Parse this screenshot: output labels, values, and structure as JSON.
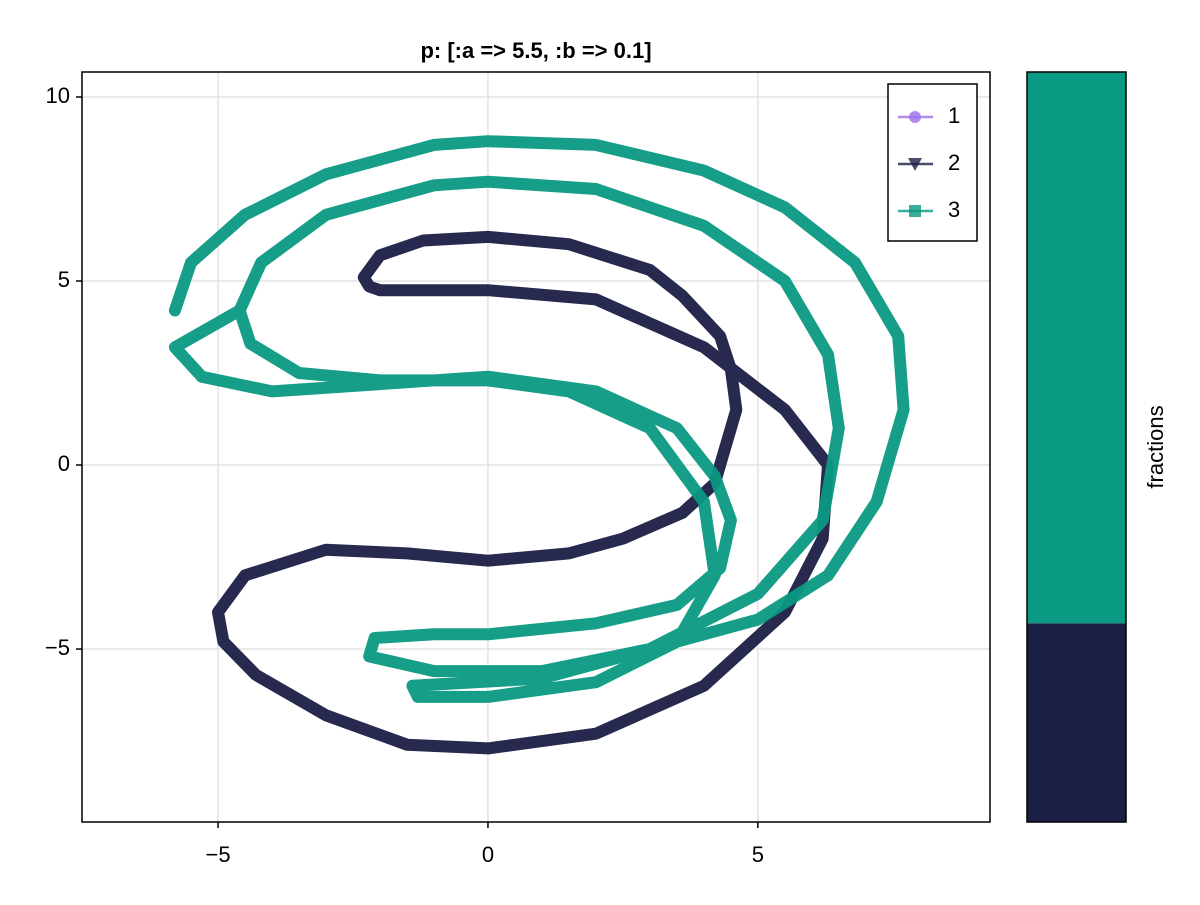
{
  "chart_data": [
    {
      "type": "line",
      "title": "p: [:a => 5.5, :b => 0.1]",
      "xlim": [
        -7.52,
        9.3
      ],
      "ylim": [
        -9.7,
        10.68
      ],
      "xticks": [
        {
          "value": -5,
          "label": "−5"
        },
        0,
        5
      ],
      "yticks": [
        {
          "value": -5,
          "label": "−5"
        },
        0,
        5,
        10
      ],
      "grid": true,
      "legend": "top-right",
      "series": [
        {
          "name": "1",
          "color": "#9b6fe6",
          "marker": "circle",
          "x": [],
          "y": []
        },
        {
          "name": "2",
          "color": "#1b1f45",
          "marker": "triangle-down",
          "x": [
            -2.0,
            0,
            2,
            4,
            5.5,
            6.3,
            6.2,
            5.5,
            4,
            2,
            0,
            -1.5,
            -3,
            -4.3,
            -4.9,
            -5,
            -4.5,
            -3,
            -1.5,
            0,
            1.5,
            2.5,
            3.6,
            4.2,
            4.6,
            4.5,
            4.3,
            3.6,
            3,
            1.5,
            0,
            -1.2,
            -2,
            -2.3,
            -2.2,
            -2.0
          ],
          "y": [
            4.75,
            4.75,
            4.5,
            3.2,
            1.5,
            0,
            -2,
            -4,
            -6,
            -7.3,
            -7.7,
            -7.6,
            -6.8,
            -5.7,
            -4.8,
            -4,
            -3,
            -2.3,
            -2.4,
            -2.6,
            -2.4,
            -2,
            -1.3,
            -0.5,
            1.5,
            2.6,
            3.5,
            4.6,
            5.3,
            6.0,
            6.2,
            6.1,
            5.7,
            5.1,
            4.85,
            4.75
          ]
        },
        {
          "name": "3",
          "color": "#0a9982",
          "marker": "square",
          "x": [
            -5.8,
            -5.5,
            -4.5,
            -3,
            -1,
            0,
            2,
            4,
            5.5,
            6.8,
            7.6,
            7.7,
            7.2,
            6.3,
            5,
            3,
            1,
            -1,
            -2.2,
            -2.1,
            -1,
            0,
            2,
            3.5,
            4.3,
            4.5,
            4.2,
            3.5,
            2,
            0,
            -2,
            -4,
            -5.3,
            -5.8,
            -4.6,
            -4.2,
            -3,
            -1,
            0,
            2,
            4,
            5.5,
            6.3,
            6.5,
            6.2,
            5,
            3,
            1,
            -1.4,
            -1.3,
            0,
            2,
            3.5,
            4.2,
            4,
            3,
            1.5,
            0,
            -2,
            -3.5,
            -4.4,
            -4.6
          ],
          "y": [
            4.2,
            5.5,
            6.8,
            7.9,
            8.7,
            8.8,
            8.7,
            8,
            7,
            5.5,
            3.5,
            1.5,
            -1,
            -3,
            -4.2,
            -5,
            -5.6,
            -5.6,
            -5.2,
            -4.7,
            -4.6,
            -4.6,
            -4.3,
            -3.8,
            -2.8,
            -1.5,
            -0.3,
            1,
            2,
            2.4,
            2.2,
            2.0,
            2.4,
            3.2,
            4.2,
            5.5,
            6.8,
            7.6,
            7.7,
            7.5,
            6.5,
            5,
            3,
            1,
            -1.5,
            -3.5,
            -5,
            -5.8,
            -6.0,
            -6.3,
            -6.3,
            -5.9,
            -4.8,
            -3,
            -1,
            1,
            2,
            2.3,
            2.3,
            2.5,
            3.3,
            4.2
          ]
        }
      ]
    },
    {
      "type": "stacked_bar",
      "label": "fractions",
      "ylim": [
        0,
        1
      ],
      "values": [
        0,
        0.265,
        0.735
      ],
      "colors": [
        "#9b6fe6",
        "#1b1f45",
        "#0a9982"
      ]
    }
  ]
}
